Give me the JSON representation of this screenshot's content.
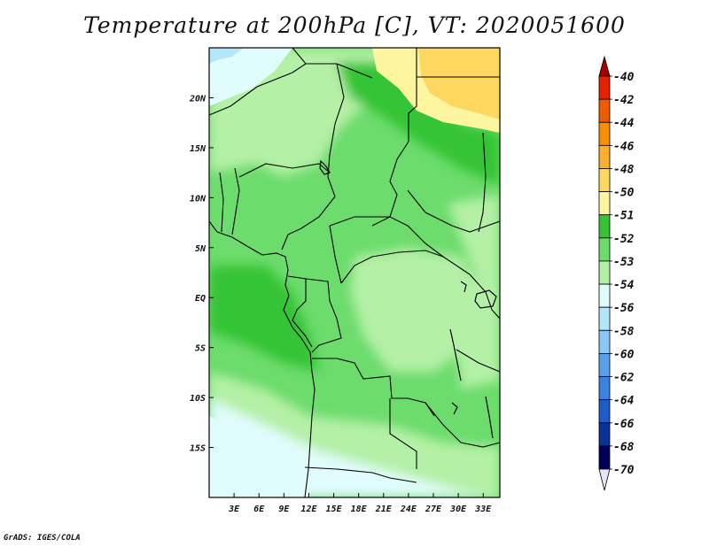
{
  "title": "Temperature at 200hPa [C], VT: 2020051600",
  "credit": "GrADS: IGES/COLA",
  "map": {
    "lon_range": [
      0,
      35
    ],
    "lat_range": [
      -20,
      25
    ],
    "lon_ticks": [
      {
        "lon": 3,
        "label": "3E"
      },
      {
        "lon": 6,
        "label": "6E"
      },
      {
        "lon": 9,
        "label": "9E"
      },
      {
        "lon": 12,
        "label": "12E"
      },
      {
        "lon": 15,
        "label": "15E"
      },
      {
        "lon": 18,
        "label": "18E"
      },
      {
        "lon": 21,
        "label": "21E"
      },
      {
        "lon": 24,
        "label": "24E"
      },
      {
        "lon": 27,
        "label": "27E"
      },
      {
        "lon": 30,
        "label": "30E"
      },
      {
        "lon": 33,
        "label": "33E"
      }
    ],
    "lat_ticks": [
      {
        "lat": 20,
        "label": "20N"
      },
      {
        "lat": 15,
        "label": "15N"
      },
      {
        "lat": 10,
        "label": "10N"
      },
      {
        "lat": 5,
        "label": "5N"
      },
      {
        "lat": 0,
        "label": "EQ"
      },
      {
        "lat": -5,
        "label": "5S"
      },
      {
        "lat": -10,
        "label": "10S"
      },
      {
        "lat": -15,
        "label": "15S"
      }
    ]
  },
  "colorbar": {
    "labels": [
      "-40",
      "-42",
      "-44",
      "-46",
      "-48",
      "-50",
      "-51",
      "-52",
      "-53",
      "-54",
      "-56",
      "-58",
      "-60",
      "-62",
      "-64",
      "-66",
      "-68",
      "-70"
    ],
    "colors": [
      "#a50000",
      "#e62100",
      "#f05a00",
      "#f88e00",
      "#fbb030",
      "#fdd760",
      "#fef5a0",
      "#36c436",
      "#6cdc6c",
      "#b4f0a6",
      "#e1fcfc",
      "#b4e6fa",
      "#8cc8f5",
      "#5aa0eb",
      "#3c82e1",
      "#1e5ac8",
      "#0a3296",
      "#00005a",
      "#e6e6fa"
    ]
  }
}
